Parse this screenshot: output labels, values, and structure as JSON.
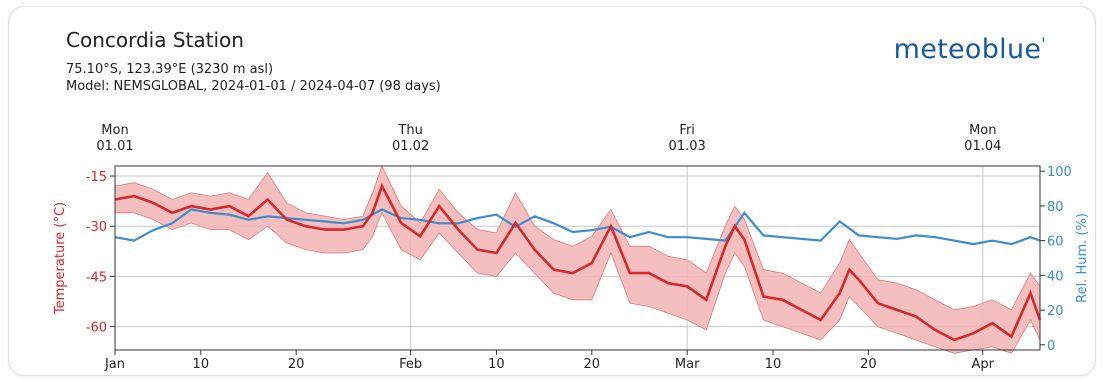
{
  "station": {
    "title": "Concordia Station",
    "coords": "75.10°S, 123.39°E (3230 m asl)",
    "model": "Model: NEMSGLOBAL, 2024-01-01 / 2024-04-07 (98 days)"
  },
  "logo": {
    "text": "meteoblue",
    "mark": "'"
  },
  "colors": {
    "temperature": "#d42a2a",
    "temperature_band": "#f5b4b4",
    "humidity": "#3a8ed0",
    "grid": "#c8c8c8",
    "brand": "#1a5a9c"
  },
  "chart_data": {
    "type": "line",
    "x_unit": "day of year 2024",
    "x_range": [
      1,
      98
    ],
    "y_left": {
      "label": "Temperature (°C)",
      "ticks": [
        -15,
        -30,
        -45,
        -60
      ],
      "range": [
        -67,
        -12
      ]
    },
    "y_right": {
      "label": "Rel. Hum. (%)",
      "ticks": [
        100,
        80,
        60,
        40,
        20,
        0
      ],
      "range": [
        -3,
        103
      ]
    },
    "x_ticks_bottom": [
      {
        "x": 1,
        "label": "Jan"
      },
      {
        "x": 10,
        "label": "10"
      },
      {
        "x": 20,
        "label": "20"
      },
      {
        "x": 32,
        "label": "Feb"
      },
      {
        "x": 41,
        "label": "10"
      },
      {
        "x": 51,
        "label": "20"
      },
      {
        "x": 61,
        "label": "Mar"
      },
      {
        "x": 70,
        "label": "10"
      },
      {
        "x": 80,
        "label": "20"
      },
      {
        "x": 92,
        "label": "Apr"
      }
    ],
    "x_ticks_top": [
      {
        "x": 1,
        "day": "Mon",
        "date": "01.01"
      },
      {
        "x": 32,
        "day": "Thu",
        "date": "01.02"
      },
      {
        "x": 61,
        "day": "Fri",
        "date": "01.03"
      },
      {
        "x": 92,
        "day": "Mon",
        "date": "01.04"
      }
    ],
    "series": [
      {
        "name": "Temperature mean",
        "x": [
          1,
          3,
          5,
          7,
          9,
          11,
          13,
          15,
          17,
          19,
          21,
          23,
          25,
          27,
          28,
          29,
          31,
          33,
          35,
          37,
          39,
          41,
          43,
          45,
          47,
          49,
          51,
          53,
          55,
          57,
          59,
          61,
          63,
          65,
          66,
          67,
          69,
          71,
          73,
          75,
          77,
          78,
          79,
          81,
          83,
          85,
          87,
          89,
          91,
          93,
          95,
          97,
          98
        ],
        "values": [
          -22,
          -21,
          -23,
          -26,
          -24,
          -25,
          -24,
          -27,
          -22,
          -28,
          -30,
          -31,
          -31,
          -30,
          -26,
          -18,
          -29,
          -33,
          -24,
          -31,
          -37,
          -38,
          -29,
          -37,
          -43,
          -44,
          -41,
          -30,
          -44,
          -44,
          -47,
          -48,
          -52,
          -36,
          -30,
          -34,
          -51,
          -52,
          -55,
          -58,
          -50,
          -43,
          -46,
          -53,
          -55,
          -57,
          -61,
          -64,
          -62,
          -59,
          -63,
          -50,
          -58
        ]
      },
      {
        "name": "Temperature max",
        "x": [
          1,
          3,
          5,
          7,
          9,
          11,
          13,
          15,
          17,
          19,
          21,
          23,
          25,
          27,
          28,
          29,
          31,
          33,
          35,
          37,
          39,
          41,
          43,
          45,
          47,
          49,
          51,
          53,
          55,
          57,
          59,
          61,
          63,
          65,
          66,
          67,
          69,
          71,
          73,
          75,
          77,
          78,
          79,
          81,
          83,
          85,
          87,
          89,
          91,
          93,
          95,
          97,
          98
        ],
        "values": [
          -18,
          -17,
          -19,
          -22,
          -20,
          -21,
          -20,
          -22,
          -14,
          -23,
          -26,
          -27,
          -28,
          -27,
          -20,
          -12,
          -24,
          -29,
          -19,
          -26,
          -31,
          -32,
          -20,
          -30,
          -34,
          -36,
          -33,
          -25,
          -36,
          -36,
          -39,
          -40,
          -44,
          -30,
          -24,
          -28,
          -43,
          -44,
          -47,
          -50,
          -41,
          -34,
          -38,
          -46,
          -47,
          -49,
          -52,
          -55,
          -54,
          -52,
          -55,
          -44,
          -48
        ]
      },
      {
        "name": "Temperature min",
        "x": [
          1,
          3,
          5,
          7,
          9,
          11,
          13,
          15,
          17,
          19,
          21,
          23,
          25,
          27,
          28,
          29,
          31,
          33,
          35,
          37,
          39,
          41,
          43,
          45,
          47,
          49,
          51,
          53,
          55,
          57,
          59,
          61,
          63,
          65,
          66,
          67,
          69,
          71,
          73,
          75,
          77,
          78,
          79,
          81,
          83,
          85,
          87,
          89,
          91,
          93,
          95,
          97,
          98
        ],
        "values": [
          -26,
          -26,
          -28,
          -31,
          -29,
          -31,
          -31,
          -34,
          -30,
          -35,
          -37,
          -38,
          -38,
          -37,
          -33,
          -26,
          -37,
          -40,
          -32,
          -38,
          -44,
          -45,
          -38,
          -44,
          -50,
          -52,
          -52,
          -38,
          -53,
          -54,
          -56,
          -58,
          -61,
          -44,
          -38,
          -42,
          -58,
          -60,
          -62,
          -64,
          -58,
          -51,
          -54,
          -60,
          -62,
          -64,
          -66,
          -68,
          -67,
          -66,
          -68,
          -58,
          -64
        ]
      },
      {
        "name": "Relative humidity",
        "x": [
          1,
          3,
          5,
          7,
          9,
          11,
          13,
          15,
          17,
          19,
          21,
          23,
          25,
          27,
          29,
          31,
          33,
          35,
          37,
          39,
          41,
          43,
          45,
          47,
          49,
          51,
          53,
          55,
          57,
          59,
          61,
          63,
          65,
          67,
          69,
          71,
          73,
          75,
          77,
          79,
          81,
          83,
          85,
          87,
          89,
          91,
          93,
          95,
          97,
          98
        ],
        "values": [
          62,
          60,
          66,
          70,
          78,
          76,
          75,
          72,
          74,
          73,
          72,
          71,
          70,
          72,
          78,
          73,
          72,
          70,
          70,
          73,
          75,
          68,
          74,
          70,
          65,
          66,
          68,
          62,
          65,
          62,
          62,
          61,
          60,
          76,
          63,
          62,
          61,
          60,
          71,
          63,
          62,
          61,
          63,
          62,
          60,
          58,
          60,
          58,
          62,
          60
        ]
      }
    ]
  }
}
